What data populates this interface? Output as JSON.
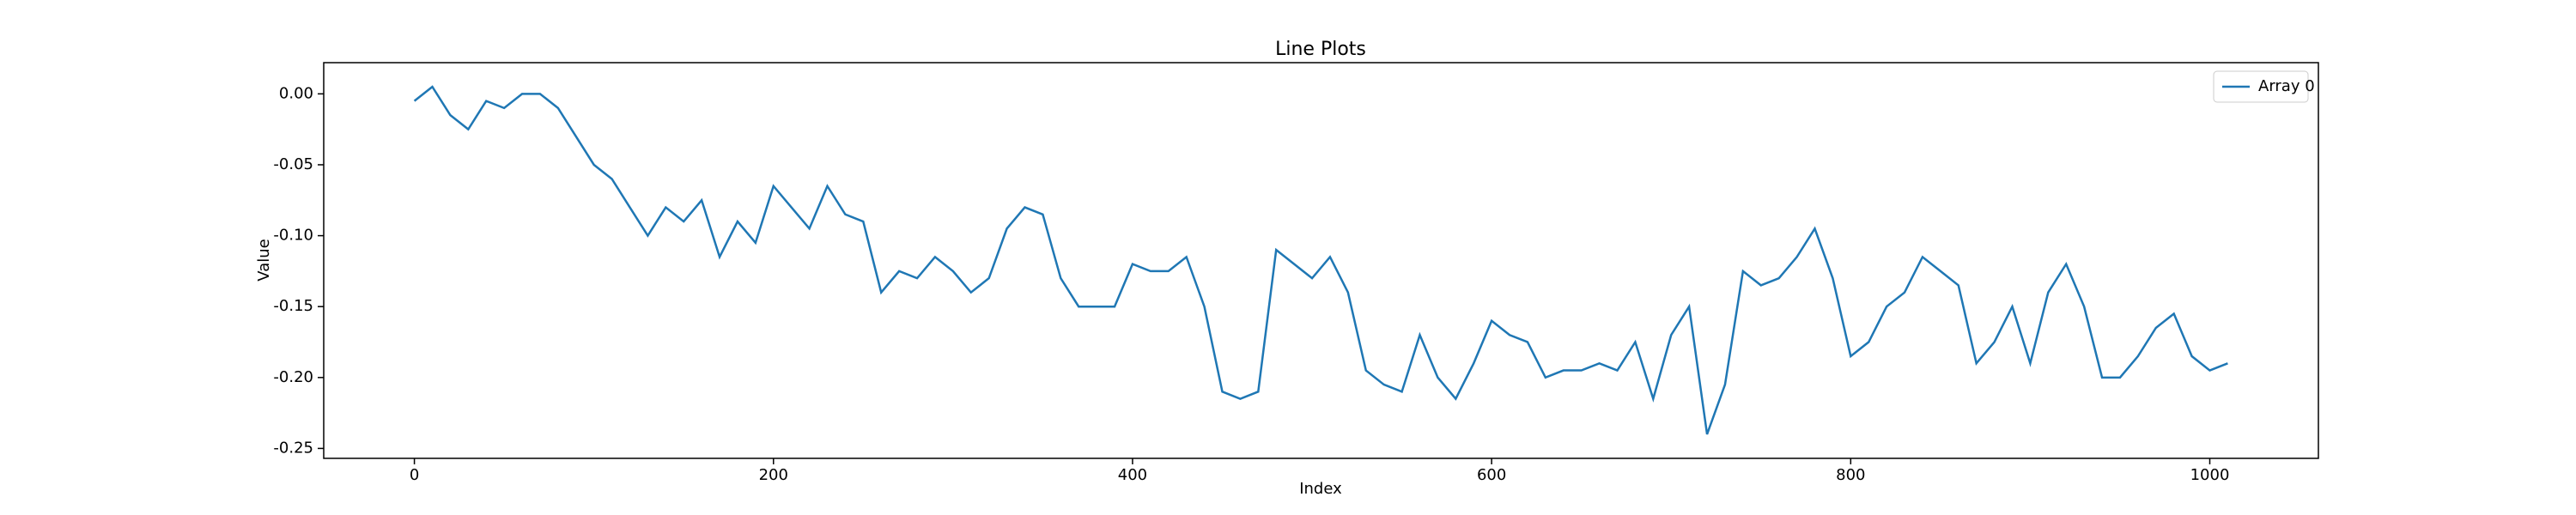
{
  "chart_data": {
    "type": "line",
    "title": "Line Plots",
    "x_label": "Index",
    "y_label": "Value",
    "x": [
      0,
      10,
      20,
      30,
      40,
      50,
      60,
      70,
      80,
      90,
      100,
      110,
      120,
      130,
      140,
      150,
      160,
      170,
      180,
      190,
      200,
      210,
      220,
      230,
      240,
      250,
      260,
      270,
      280,
      290,
      300,
      310,
      320,
      330,
      340,
      350,
      360,
      370,
      380,
      390,
      400,
      410,
      420,
      430,
      440,
      450,
      460,
      470,
      480,
      490,
      500,
      510,
      520,
      530,
      540,
      550,
      560,
      570,
      580,
      590,
      600,
      610,
      620,
      630,
      640,
      650,
      660,
      670,
      680,
      690,
      700,
      710,
      720,
      730,
      740,
      750,
      760,
      770,
      780,
      790,
      800,
      810,
      820,
      830,
      840,
      850,
      860,
      870,
      880,
      890,
      900,
      910,
      920,
      930,
      940,
      950,
      960,
      970,
      980,
      990,
      1000,
      1010
    ],
    "series": [
      {
        "name": "Array 0",
        "color": "#1f77b4",
        "values": [
          -0.005,
          0.005,
          -0.015,
          -0.025,
          -0.005,
          -0.01,
          0.0,
          0.0,
          -0.01,
          -0.03,
          -0.05,
          -0.06,
          -0.08,
          -0.1,
          -0.08,
          -0.09,
          -0.075,
          -0.115,
          -0.09,
          -0.105,
          -0.065,
          -0.08,
          -0.095,
          -0.065,
          -0.085,
          -0.09,
          -0.14,
          -0.125,
          -0.13,
          -0.115,
          -0.125,
          -0.14,
          -0.13,
          -0.095,
          -0.08,
          -0.085,
          -0.13,
          -0.15,
          -0.15,
          -0.15,
          -0.12,
          -0.125,
          -0.125,
          -0.115,
          -0.15,
          -0.21,
          -0.215,
          -0.21,
          -0.11,
          -0.12,
          -0.13,
          -0.115,
          -0.14,
          -0.195,
          -0.205,
          -0.21,
          -0.17,
          -0.2,
          -0.215,
          -0.19,
          -0.16,
          -0.17,
          -0.175,
          -0.2,
          -0.195,
          -0.195,
          -0.19,
          -0.195,
          -0.175,
          -0.215,
          -0.17,
          -0.15,
          -0.24,
          -0.205,
          -0.125,
          -0.135,
          -0.13,
          -0.115,
          -0.095,
          -0.13,
          -0.185,
          -0.175,
          -0.15,
          -0.14,
          -0.115,
          -0.125,
          -0.135,
          -0.19,
          -0.175,
          -0.15,
          -0.19,
          -0.14,
          -0.12,
          -0.15,
          -0.2,
          -0.2,
          -0.185,
          -0.165,
          -0.155,
          -0.185,
          -0.195,
          -0.19
        ]
      }
    ],
    "xlim": [
      -50.5,
      1060.5
    ],
    "ylim": [
      -0.257,
      0.022
    ],
    "xticks": [
      0,
      200,
      400,
      600,
      800,
      1000
    ],
    "yticks": [
      {
        "value": -0.25,
        "label": "-0.25"
      },
      {
        "value": -0.2,
        "label": "-0.20"
      },
      {
        "value": -0.15,
        "label": "-0.15"
      },
      {
        "value": -0.1,
        "label": "-0.10"
      },
      {
        "value": -0.05,
        "label": "-0.05"
      },
      {
        "value": 0,
        "label": "0.00"
      }
    ],
    "legend": "upper right"
  }
}
